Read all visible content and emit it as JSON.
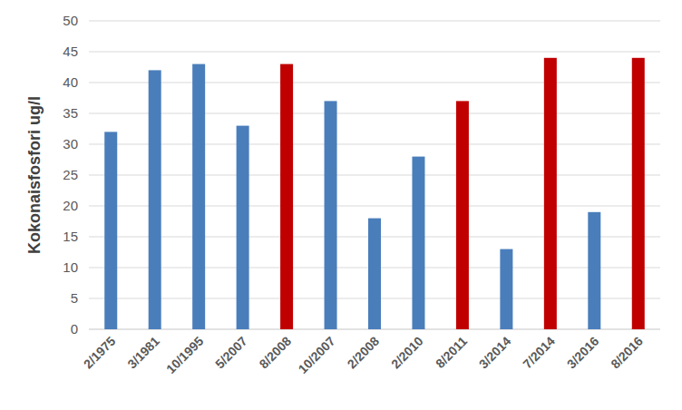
{
  "chart_data": {
    "type": "bar",
    "y_label": "Kokonaisfosfori ug/l",
    "categories": [
      "2/1975",
      "3/1981",
      "10/1995",
      "5/2007",
      "8/2008",
      "10/2007",
      "2/2008",
      "2/2010",
      "8/2011",
      "3/2014",
      "7/2014",
      "3/2016",
      "8/2016"
    ],
    "values": [
      32,
      42,
      43,
      33,
      43,
      37,
      18,
      28,
      37,
      13,
      44,
      19,
      44
    ],
    "colors": [
      "#4a7ebb",
      "#4a7ebb",
      "#4a7ebb",
      "#4a7ebb",
      "#c00000",
      "#4a7ebb",
      "#4a7ebb",
      "#4a7ebb",
      "#c00000",
      "#4a7ebb",
      "#c00000",
      "#4a7ebb",
      "#c00000"
    ],
    "ylim": [
      0,
      50
    ],
    "yticks": [
      0,
      5,
      10,
      15,
      20,
      25,
      30,
      35,
      40,
      45,
      50
    ],
    "grid": true
  }
}
